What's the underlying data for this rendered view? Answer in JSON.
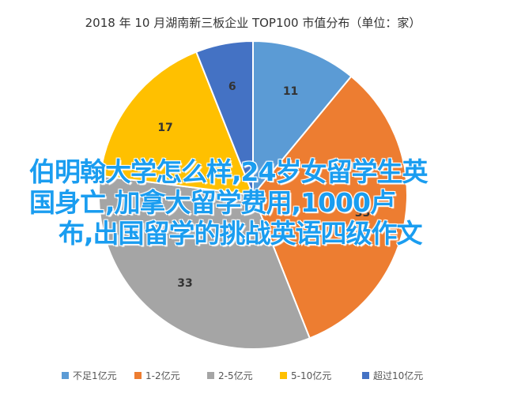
{
  "chart_data": {
    "type": "pie",
    "title": "2018 年 10 月湖南新三板企业 TOP100 市值分布（单位：家）",
    "categories": [
      "不足1亿元",
      "1-2亿元",
      "2-5亿元",
      "5-10亿元",
      "超过10亿元"
    ],
    "values": [
      11,
      33,
      33,
      17,
      6
    ],
    "colors": [
      "#5b9bd5",
      "#ed7d31",
      "#a5a5a5",
      "#ffc000",
      "#4472c4"
    ],
    "legend_position": "bottom"
  },
  "overlay": {
    "line1": "伯明翰大学怎么样,24岁女留学生英",
    "line2": "国身亡,加拿大留学费用,1000卢",
    "line3": "布,出国留学的挑战英语四级作文"
  }
}
